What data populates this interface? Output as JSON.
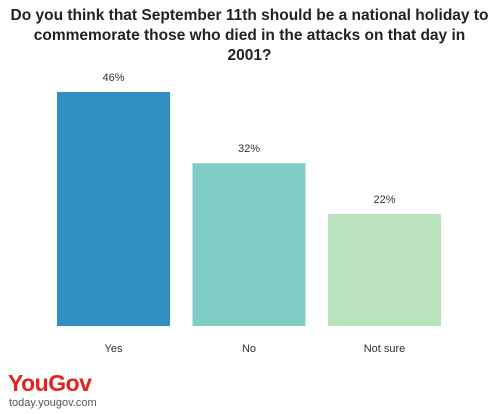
{
  "chart_data": {
    "type": "bar",
    "title": "Do you think that September 11th should be a national holiday to commemorate those who died in the attacks on that day in 2001?",
    "categories": [
      "Yes",
      "No",
      "Not sure"
    ],
    "values": [
      46,
      32,
      22
    ],
    "value_labels": [
      "46%",
      "32%",
      "22%"
    ],
    "colors": [
      "#2e8fc0",
      "#7fcdc4",
      "#b8e3bd"
    ]
  },
  "brand": {
    "logo": "YouGov",
    "url": "today.yougov.com"
  }
}
